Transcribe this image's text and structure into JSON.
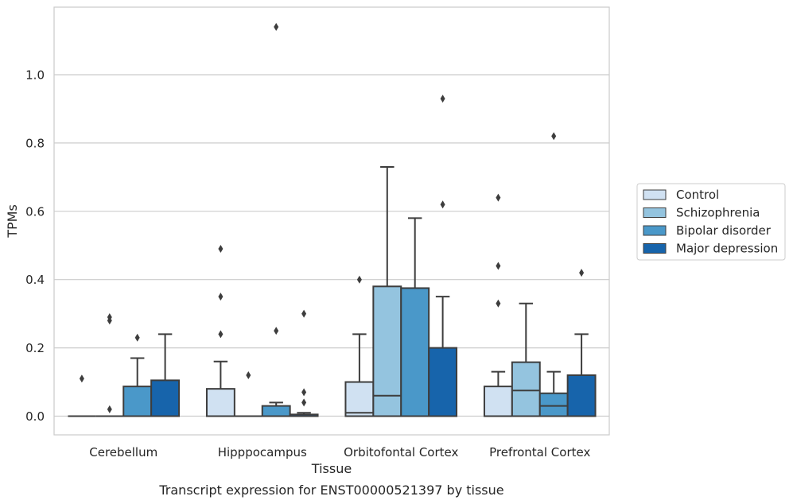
{
  "chart_data": {
    "type": "box",
    "title": "",
    "caption": "Transcript expression for ENST00000521397 by tissue",
    "xlabel": "Tissue",
    "ylabel": "TPMs",
    "ylim": [
      -0.055,
      1.2
    ],
    "yticks": [
      0.0,
      0.2,
      0.4,
      0.6,
      0.8,
      1.0
    ],
    "ytick_labels": [
      "0.0",
      "0.2",
      "0.4",
      "0.6",
      "0.8",
      "1.0"
    ],
    "grid": "horizontal",
    "legend_position": "right",
    "categories": [
      "Cerebellum",
      "Hipppocampus",
      "Orbitofontal Cortex",
      "Prefrontal Cortex"
    ],
    "series": [
      {
        "name": "Control",
        "color": "#d0e1f2",
        "boxes": [
          {
            "q1": 0.0,
            "median": 0.0,
            "q3": 0.0,
            "whislo": 0.0,
            "whishi": 0.0,
            "fliers": [
              0.11
            ]
          },
          {
            "q1": 0.0,
            "median": 0.0,
            "q3": 0.08,
            "whislo": 0.0,
            "whishi": 0.16,
            "fliers": [
              0.24,
              0.35,
              0.49
            ]
          },
          {
            "q1": 0.0,
            "median": 0.01,
            "q3": 0.1,
            "whislo": 0.0,
            "whishi": 0.24,
            "fliers": [
              0.4
            ]
          },
          {
            "q1": 0.0,
            "median": 0.0,
            "q3": 0.087,
            "whislo": 0.0,
            "whishi": 0.13,
            "fliers": [
              0.33,
              0.44,
              0.64
            ]
          }
        ]
      },
      {
        "name": "Schizophrenia",
        "color": "#94c4df",
        "boxes": [
          {
            "q1": 0.0,
            "median": 0.0,
            "q3": 0.0,
            "whislo": 0.0,
            "whishi": 0.0,
            "fliers": [
              0.02,
              0.28,
              0.29
            ]
          },
          {
            "q1": 0.0,
            "median": 0.0,
            "q3": 0.0,
            "whislo": 0.0,
            "whishi": 0.0,
            "fliers": [
              0.12
            ]
          },
          {
            "q1": 0.0,
            "median": 0.06,
            "q3": 0.38,
            "whislo": 0.0,
            "whishi": 0.73,
            "fliers": []
          },
          {
            "q1": 0.0,
            "median": 0.075,
            "q3": 0.158,
            "whislo": 0.0,
            "whishi": 0.33,
            "fliers": []
          }
        ]
      },
      {
        "name": "Bipolar disorder",
        "color": "#4a98c9",
        "boxes": [
          {
            "q1": 0.0,
            "median": 0.0,
            "q3": 0.087,
            "whislo": 0.0,
            "whishi": 0.17,
            "fliers": [
              0.23
            ]
          },
          {
            "q1": 0.0,
            "median": 0.0,
            "q3": 0.03,
            "whislo": 0.0,
            "whishi": 0.04,
            "fliers": [
              0.25,
              1.14
            ]
          },
          {
            "q1": 0.0,
            "median": 0.0,
            "q3": 0.375,
            "whislo": 0.0,
            "whishi": 0.58,
            "fliers": []
          },
          {
            "q1": 0.0,
            "median": 0.03,
            "q3": 0.067,
            "whislo": 0.0,
            "whishi": 0.13,
            "fliers": [
              0.82
            ]
          }
        ]
      },
      {
        "name": "Major depression",
        "color": "#1764ab",
        "boxes": [
          {
            "q1": 0.0,
            "median": 0.0,
            "q3": 0.105,
            "whislo": 0.0,
            "whishi": 0.24,
            "fliers": []
          },
          {
            "q1": 0.0,
            "median": 0.0,
            "q3": 0.005,
            "whislo": 0.0,
            "whishi": 0.01,
            "fliers": [
              0.04,
              0.07,
              0.3
            ]
          },
          {
            "q1": 0.0,
            "median": 0.0,
            "q3": 0.2,
            "whislo": 0.0,
            "whishi": 0.35,
            "fliers": [
              0.62,
              0.93
            ]
          },
          {
            "q1": 0.0,
            "median": 0.0,
            "q3": 0.12,
            "whislo": 0.0,
            "whishi": 0.24,
            "fliers": [
              0.42
            ]
          }
        ]
      }
    ]
  }
}
